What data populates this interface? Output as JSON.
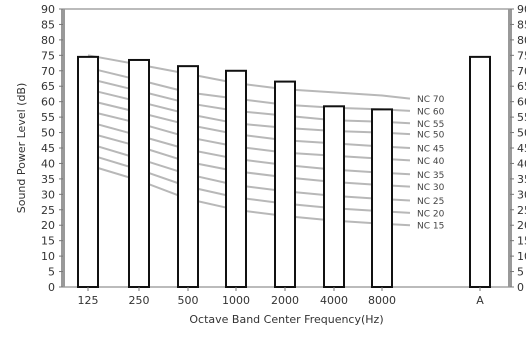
{
  "chart_data": {
    "type": "bar",
    "xlabel": "Octave Band Center Frequency(Hz)",
    "ylabel": "Sound Power Level (dB)",
    "ylim": [
      0,
      90
    ],
    "yticks": [
      0,
      5,
      10,
      15,
      20,
      25,
      30,
      35,
      40,
      45,
      50,
      55,
      60,
      65,
      70,
      75,
      80,
      85,
      90
    ],
    "categories": [
      "125",
      "250",
      "500",
      "1000",
      "2000",
      "4000",
      "8000",
      "A"
    ],
    "values": [
      74.5,
      73.5,
      71.5,
      70,
      66.5,
      58.5,
      57.5,
      74.5
    ],
    "grid": false,
    "nc_curves": [
      {
        "name": "NC 70",
        "values": [
          75,
          72,
          69,
          66,
          64,
          63,
          62,
          61
        ]
      },
      {
        "name": "NC 60",
        "values": [
          71,
          67,
          63,
          61,
          59,
          58,
          57.5,
          57
        ]
      },
      {
        "name": "NC 55",
        "values": [
          67.5,
          63.5,
          59.5,
          57,
          55.5,
          54,
          53.5,
          53
        ]
      },
      {
        "name": "NC 50",
        "values": [
          64,
          60,
          56,
          53,
          51.5,
          50.5,
          50,
          49.5
        ]
      },
      {
        "name": "NC 45",
        "values": [
          60.5,
          56.5,
          52.5,
          49.5,
          47.5,
          46.5,
          45.5,
          45
        ]
      },
      {
        "name": "NC 40",
        "values": [
          57,
          53,
          48.5,
          45.5,
          43.5,
          42.5,
          41.5,
          41
        ]
      },
      {
        "name": "NC 35",
        "values": [
          53.5,
          49,
          44.5,
          41.5,
          39.5,
          38,
          37,
          36.5
        ]
      },
      {
        "name": "NC 30",
        "values": [
          50,
          45.5,
          40.5,
          37.5,
          35.5,
          34,
          33,
          32.5
        ]
      },
      {
        "name": "NC 25",
        "values": [
          46.5,
          41.5,
          36.5,
          33,
          31,
          29.5,
          28.5,
          28
        ]
      },
      {
        "name": "NC 20",
        "values": [
          43,
          38,
          32.5,
          29,
          27,
          25.5,
          24.5,
          24
        ]
      },
      {
        "name": "NC 15",
        "values": [
          39.5,
          34.5,
          28.5,
          25,
          23,
          21.5,
          20.5,
          20
        ]
      }
    ],
    "colors": {
      "bar_fill": "#ffffff",
      "bar_stroke": "#111111",
      "curve": "#b8b8b8",
      "axis": "#777777",
      "text": "#333333"
    }
  }
}
